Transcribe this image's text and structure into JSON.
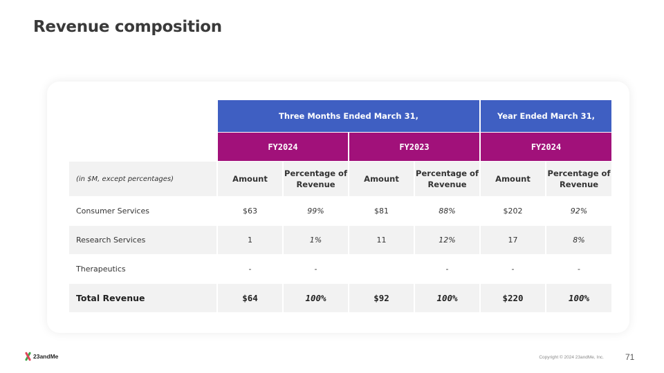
{
  "title": "Revenue composition",
  "table": {
    "group_headers": [
      "Three Months Ended March 31,",
      "Year Ended March 31,"
    ],
    "fiscal_years": [
      "FY2024",
      "FY2023",
      "FY2024"
    ],
    "units_label": "(in $M, except percentages)",
    "col_amount": "Amount",
    "col_pct": "Percentage of Revenue",
    "rows": [
      {
        "label": "Consumer Services",
        "values": [
          "$63",
          "99%",
          "$81",
          "88%",
          "$202",
          "92%"
        ]
      },
      {
        "label": "Research Services",
        "values": [
          "1",
          "1%",
          "11",
          "12%",
          "17",
          "8%"
        ]
      },
      {
        "label": "Therapeutics",
        "values": [
          "-",
          "-",
          "",
          "-",
          "-",
          "-"
        ]
      },
      {
        "label": "Total Revenue",
        "values": [
          "$64",
          "100%",
          "$92",
          "100%",
          "$220",
          "100%"
        ]
      }
    ]
  },
  "footer": {
    "logo_text": "23andMe",
    "copyright": "Copyright © 2024 23andMe, Inc.",
    "page_number": "71"
  },
  "colors": {
    "header_blue": "#3f5fc2",
    "header_magenta": "#a1117a",
    "row_shade": "#f2f2f2"
  }
}
